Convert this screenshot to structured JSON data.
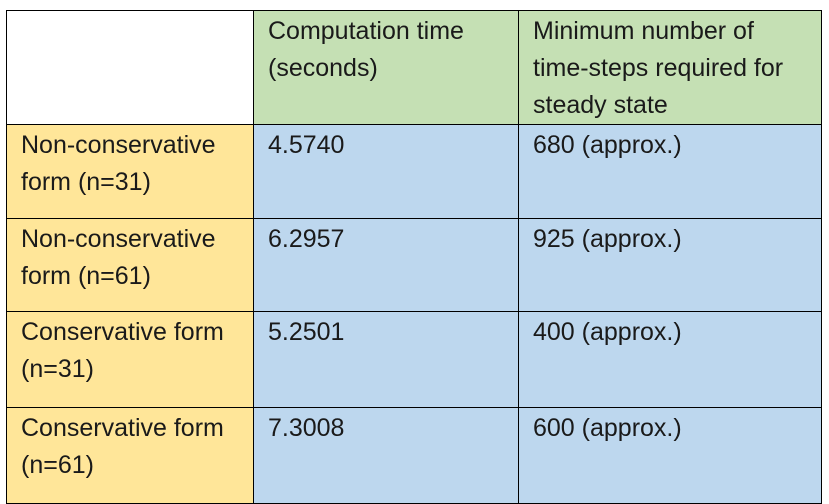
{
  "table": {
    "corner": "",
    "columns": [
      "Computation time (seconds)",
      "Minimum number of time-steps required for steady state"
    ],
    "rows": [
      {
        "label": "Non-conservative form (n=31)",
        "computation_time": "4.5740",
        "min_time_steps": "680 (approx.)"
      },
      {
        "label": "Non-conservative form (n=61)",
        "computation_time": "6.2957",
        "min_time_steps": "925 (approx.)"
      },
      {
        "label": "Conservative form (n=31)",
        "computation_time": "5.2501",
        "min_time_steps": "400 (approx.)"
      },
      {
        "label": "Conservative form (n=61)",
        "computation_time": "7.3008",
        "min_time_steps": "600 (approx.)"
      }
    ],
    "colors": {
      "header_background": "#c5e0b4",
      "row_header_background": "#ffe699",
      "cell_background": "#bdd7ee",
      "border": "#000000"
    }
  }
}
